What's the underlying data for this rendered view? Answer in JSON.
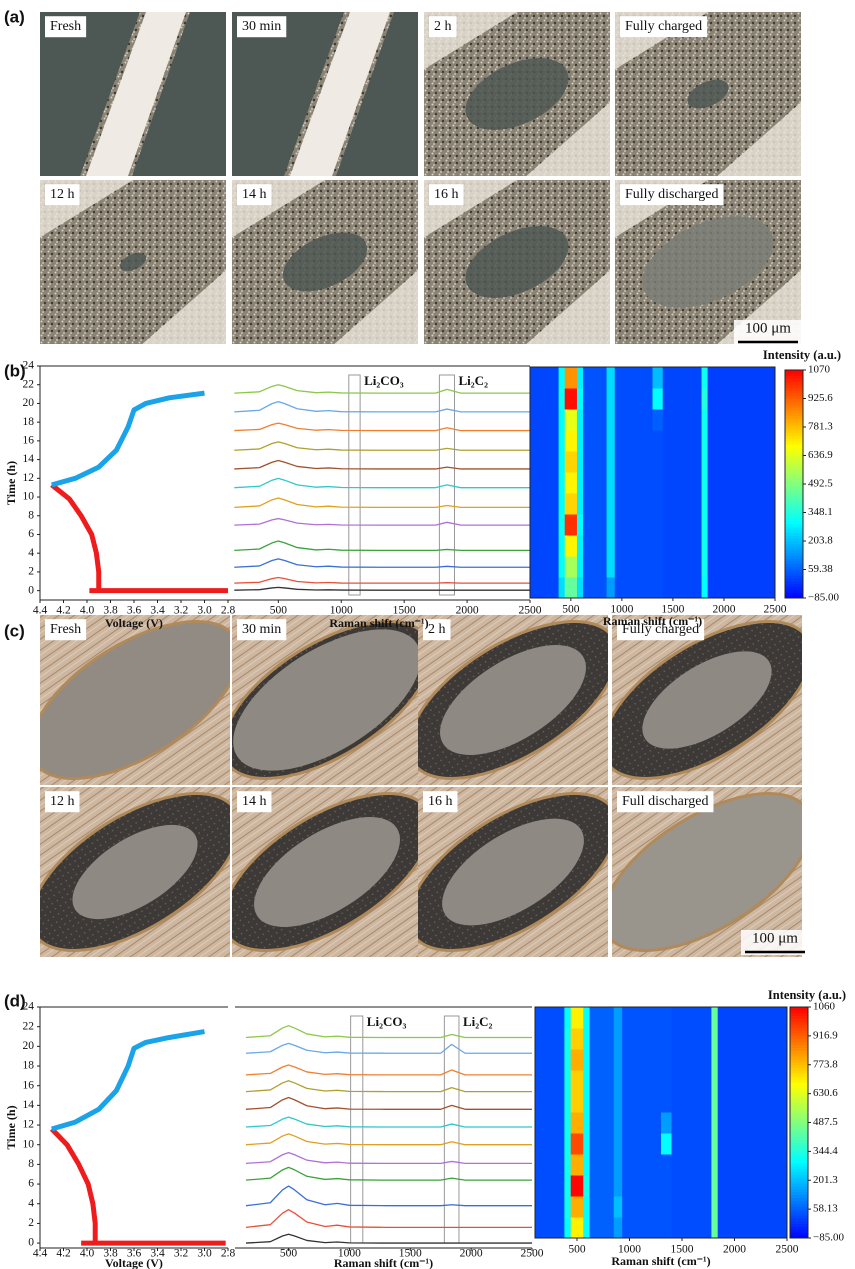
{
  "panel_labels": [
    "(a)",
    "(b)",
    "(c)",
    "(d)"
  ],
  "micrographs": [
    {
      "labels": [
        "Fresh",
        "30 min",
        "2 h",
        "Fully charged",
        "12 h",
        "14 h",
        "16 h",
        "Fully discharged"
      ],
      "scale_bar": "100 μm"
    },
    {
      "labels": [
        "Fresh",
        "30 min",
        "2 h",
        "Fully charged",
        "12 h",
        "14 h",
        "16 h",
        "Full discharged"
      ],
      "scale_bar": "100 μm"
    }
  ],
  "chart_data": [
    {
      "type": "line",
      "xlabel": "Voltage (V)",
      "ylabel": "Time (h)",
      "xlim": [
        4.4,
        2.8
      ],
      "ylim": [
        -1,
        24
      ],
      "xticks": [
        4.4,
        4.2,
        {
          "value": 4,
          "label": "4.0"
        },
        3.8,
        3.6,
        3.4,
        3.2,
        {
          "value": 3,
          "label": "3.0"
        },
        2.8
      ],
      "yticks": [
        0,
        2,
        4,
        6,
        8,
        10,
        12,
        14,
        16,
        18,
        20,
        22,
        24
      ],
      "series": [
        {
          "color": "#ee1c1c",
          "x": [
            3.98,
            2.8,
            null,
            3.9,
            3.9,
            3.92,
            3.96,
            4.05,
            4.15,
            4.3
          ],
          "values": [
            0,
            0,
            null,
            0,
            2,
            4,
            6,
            8,
            9.8,
            11.3
          ]
        },
        {
          "color": "#1aa3e8",
          "x": [
            4.3,
            4.1,
            3.9,
            3.75,
            3.65,
            3.6,
            3.5,
            3.3,
            3.0
          ],
          "values": [
            11.3,
            12,
            13.2,
            15,
            17.5,
            19.3,
            20,
            20.6,
            21.1
          ]
        }
      ]
    },
    {
      "type": "line",
      "xlabel": "Raman shift (cm⁻¹)",
      "xlim": [
        100,
        2500
      ],
      "ylim": [
        -1,
        24
      ],
      "xticks": [
        500,
        1000,
        1500,
        2000,
        2500
      ],
      "annotations": [
        {
          "text": "Li₂CO₃",
          "x": [
            1060,
            1150
          ]
        },
        {
          "text": "Li₂C₂",
          "x": [
            1780,
            1900
          ]
        }
      ],
      "x": [
        150,
        350,
        450,
        500,
        550,
        650,
        800,
        900,
        1000,
        1300,
        1750,
        1840,
        1950,
        2500
      ],
      "series": [
        {
          "color": "#333333",
          "values": [
            0.05,
            0.1,
            0.29,
            0.35,
            0.29,
            0.14,
            0.07,
            0.09,
            0.06,
            0.05,
            0.05,
            0.05,
            0.05,
            0.05
          ]
        },
        {
          "color": "#e8503a",
          "values": [
            0.8,
            0.89,
            1.28,
            1.4,
            1.28,
            0.98,
            0.83,
            0.87,
            0.81,
            0.8,
            0.8,
            0.85,
            0.8,
            0.8
          ]
        },
        {
          "color": "#3a6fd8",
          "values": [
            2.5,
            2.64,
            3.22,
            3.4,
            3.22,
            2.77,
            2.55,
            2.61,
            2.52,
            2.5,
            2.5,
            2.6,
            2.5,
            2.5
          ]
        },
        {
          "color": "#3aa43a",
          "values": [
            4.3,
            4.45,
            5.1,
            5.3,
            5.1,
            4.6,
            4.35,
            4.42,
            4.32,
            4.3,
            4.3,
            4.4,
            4.3,
            4.3
          ]
        },
        {
          "color": "#b070d8",
          "values": [
            7,
            7.11,
            7.56,
            7.7,
            7.56,
            7.21,
            7.04,
            7.08,
            7.01,
            7,
            7,
            7.3,
            7,
            7
          ]
        },
        {
          "color": "#e0a020",
          "values": [
            8.9,
            9.05,
            9.7,
            9.9,
            9.7,
            9.2,
            8.95,
            9.02,
            8.92,
            8.9,
            8.9,
            9.1,
            8.9,
            8.9
          ]
        },
        {
          "color": "#30c8c8",
          "values": [
            11,
            11.15,
            11.8,
            12,
            11.8,
            11.3,
            11.05,
            11.12,
            11.02,
            11,
            11,
            11.3,
            11,
            11
          ]
        },
        {
          "color": "#a0522d",
          "values": [
            13,
            13.14,
            13.72,
            13.9,
            13.72,
            13.27,
            13.05,
            13.11,
            13.02,
            13,
            13,
            13.2,
            13,
            13
          ]
        },
        {
          "color": "#b0a030",
          "values": [
            15,
            15.14,
            15.72,
            15.9,
            15.72,
            15.27,
            15.05,
            15.11,
            15.02,
            15,
            15,
            15.2,
            15,
            15
          ]
        },
        {
          "color": "#f08030",
          "values": [
            17.1,
            17.22,
            17.74,
            17.9,
            17.74,
            17.34,
            17.14,
            17.2,
            17.12,
            17.1,
            17.1,
            17.4,
            17.1,
            17.1
          ]
        },
        {
          "color": "#6aa8e8",
          "values": [
            19.1,
            19.27,
            19.98,
            20.2,
            19.98,
            19.43,
            19.16,
            19.23,
            19.12,
            19.1,
            19.1,
            19.4,
            19.1,
            19.1
          ]
        },
        {
          "color": "#8cc84a",
          "values": [
            21.1,
            21.24,
            21.82,
            22,
            21.82,
            21.37,
            21.15,
            21.21,
            21.12,
            21.1,
            21.1,
            21.5,
            21.1,
            21.1
          ]
        }
      ]
    },
    {
      "type": "heatmap",
      "xlabel": "Raman shift (cm⁻¹)",
      "colorbar_label": "Intensity (a.u.)",
      "xlim": [
        100,
        2500
      ],
      "ylim": [
        0,
        22
      ],
      "xticks": [
        500,
        1000,
        1500,
        2000,
        2500
      ],
      "zlim": [
        -85,
        1070
      ],
      "zticks": [
        1070,
        925.6,
        781.3,
        636.9,
        492.5,
        348.1,
        203.8,
        59.38,
        {
          "value": -85,
          "label": "−85.00"
        }
      ],
      "colorscale": [
        "#0000ff",
        "#0080ff",
        "#00ffff",
        "#80ff80",
        "#ffff00",
        "#ff8000",
        "#ff0000"
      ],
      "x": [
        100,
        380,
        440,
        560,
        620,
        850,
        930,
        1300,
        1400,
        1780,
        1840,
        2500
      ],
      "y": [
        0,
        2,
        4,
        6,
        8,
        10,
        12,
        14,
        16,
        18,
        20,
        22
      ],
      "z": [
        [
          20,
          250,
          450,
          250,
          40,
          150,
          30,
          30,
          20,
          300,
          10
        ],
        [
          20,
          300,
          550,
          280,
          40,
          250,
          30,
          30,
          20,
          320,
          10
        ],
        [
          20,
          300,
          700,
          280,
          40,
          250,
          30,
          30,
          20,
          320,
          10
        ],
        [
          20,
          320,
          1000,
          300,
          40,
          250,
          30,
          30,
          20,
          320,
          10
        ],
        [
          20,
          300,
          750,
          280,
          40,
          250,
          30,
          30,
          20,
          320,
          10
        ],
        [
          20,
          300,
          700,
          280,
          40,
          250,
          30,
          30,
          20,
          320,
          10
        ],
        [
          20,
          300,
          750,
          280,
          40,
          250,
          30,
          30,
          20,
          320,
          10
        ],
        [
          20,
          300,
          700,
          280,
          40,
          250,
          30,
          30,
          20,
          320,
          10
        ],
        [
          20,
          300,
          650,
          280,
          40,
          250,
          30,
          60,
          20,
          320,
          10
        ],
        [
          20,
          320,
          1050,
          300,
          40,
          250,
          30,
          300,
          20,
          350,
          10
        ],
        [
          20,
          300,
          850,
          280,
          40,
          250,
          30,
          200,
          20,
          320,
          10
        ]
      ]
    },
    {
      "type": "line",
      "xlabel": "Voltage (V)",
      "ylabel": "Time (h)",
      "xlim": [
        4.4,
        2.8
      ],
      "ylim": [
        -0.5,
        24
      ],
      "xticks": [
        4.4,
        4.2,
        {
          "value": 4,
          "label": "4.0"
        },
        3.8,
        3.6,
        3.4,
        3.2,
        {
          "value": 3,
          "label": "3.0"
        },
        2.8
      ],
      "yticks": [
        0,
        2,
        4,
        6,
        8,
        10,
        12,
        14,
        16,
        18,
        20,
        22,
        24
      ],
      "series": [
        {
          "color": "#ee1c1c",
          "x": [
            4.05,
            2.82,
            null,
            3.93,
            3.93,
            3.95,
            3.99,
            4.07,
            4.17,
            4.3
          ],
          "values": [
            0,
            0,
            null,
            0,
            2,
            4,
            6,
            8,
            10,
            11.6
          ]
        },
        {
          "color": "#1aa3e8",
          "x": [
            4.3,
            4.1,
            3.9,
            3.75,
            3.65,
            3.6,
            3.5,
            3.3,
            3.0
          ],
          "values": [
            11.6,
            12.3,
            13.6,
            15.5,
            18,
            19.8,
            20.4,
            20.9,
            21.5
          ]
        }
      ]
    },
    {
      "type": "line",
      "xlabel": "Raman shift (cm⁻¹)",
      "xlim": [
        60,
        2500
      ],
      "ylim": [
        -0.5,
        24
      ],
      "xticks": [
        500,
        1000,
        1500,
        2000,
        2500
      ],
      "annotations": [
        {
          "text": "Li₂CO₃",
          "x": [
            1010,
            1110
          ]
        },
        {
          "text": "Li₂C₂",
          "x": [
            1780,
            1900
          ]
        }
      ],
      "x": [
        150,
        350,
        450,
        500,
        550,
        650,
        800,
        900,
        1000,
        1300,
        1750,
        1840,
        1950,
        2500
      ],
      "series": [
        {
          "color": "#333333",
          "values": [
            0,
            0.14,
            0.72,
            0.9,
            0.72,
            0.27,
            0.05,
            0.11,
            0.02,
            0,
            0,
            0,
            0,
            0
          ]
        },
        {
          "color": "#e8503a",
          "values": [
            1.6,
            1.87,
            3.04,
            3.4,
            3.04,
            2.14,
            1.69,
            1.82,
            1.64,
            1.6,
            1.6,
            1.6,
            1.6,
            1.6
          ]
        },
        {
          "color": "#3a6fd8",
          "values": [
            3.8,
            4.1,
            5.4,
            5.8,
            5.4,
            4.4,
            3.9,
            4.04,
            3.84,
            3.8,
            3.8,
            3.9,
            3.8,
            3.8
          ]
        },
        {
          "color": "#3aa43a",
          "values": [
            6.4,
            6.6,
            7.44,
            7.7,
            7.44,
            6.79,
            6.47,
            6.56,
            6.43,
            6.4,
            6.4,
            6.6,
            6.4,
            6.4
          ]
        },
        {
          "color": "#b070d8",
          "values": [
            8.1,
            8.27,
            8.98,
            9.2,
            8.98,
            8.43,
            8.16,
            8.23,
            8.12,
            8.1,
            8.1,
            8.3,
            8.1,
            8.1
          ]
        },
        {
          "color": "#e0a020",
          "values": [
            10,
            10.17,
            10.88,
            11.1,
            10.88,
            10.33,
            10.06,
            10.13,
            10.02,
            10,
            10,
            10.3,
            10,
            10
          ]
        },
        {
          "color": "#30c8c8",
          "values": [
            11.8,
            11.95,
            12.6,
            12.8,
            12.6,
            12.1,
            11.85,
            11.92,
            11.82,
            11.8,
            11.8,
            12.1,
            11.8,
            11.8
          ]
        },
        {
          "color": "#a0522d",
          "values": [
            13.6,
            13.78,
            14.56,
            14.8,
            14.56,
            13.96,
            13.66,
            13.74,
            13.62,
            13.6,
            13.6,
            14,
            13.6,
            13.6
          ]
        },
        {
          "color": "#b0a030",
          "values": [
            15.4,
            15.57,
            16.28,
            16.5,
            16.28,
            15.73,
            15.46,
            15.53,
            15.42,
            15.4,
            15.4,
            15.8,
            15.4,
            15.4
          ]
        },
        {
          "color": "#f08030",
          "values": [
            17.1,
            17.25,
            17.9,
            18.1,
            17.9,
            17.4,
            17.15,
            17.22,
            17.12,
            17.1,
            17.1,
            17.6,
            17.1,
            17.1
          ]
        },
        {
          "color": "#6aa8e8",
          "values": [
            19.3,
            19.45,
            20.1,
            20.3,
            20.1,
            19.6,
            19.35,
            19.42,
            19.32,
            19.3,
            19.3,
            20.2,
            19.3,
            19.3
          ]
        },
        {
          "color": "#8cc84a",
          "values": [
            20.9,
            21.08,
            21.86,
            22.1,
            21.86,
            21.26,
            20.96,
            21.04,
            20.92,
            20.9,
            20.9,
            21.2,
            20.9,
            20.9
          ]
        }
      ]
    },
    {
      "type": "heatmap",
      "xlabel": "Raman shift (cm⁻¹)",
      "colorbar_label": "Intensity (a.u.)",
      "xlim": [
        100,
        2500
      ],
      "ylim": [
        0,
        22
      ],
      "xticks": [
        500,
        1000,
        1500,
        2000,
        2500
      ],
      "zlim": [
        -85,
        1060
      ],
      "zticks": [
        1060,
        916.9,
        773.8,
        630.6,
        487.5,
        344.4,
        201.3,
        58.13,
        {
          "value": -85,
          "label": "−85.00"
        }
      ],
      "colorscale": [
        "#0000ff",
        "#0080ff",
        "#00ffff",
        "#80ff80",
        "#ffff00",
        "#ff8000",
        "#ff0000"
      ],
      "x": [
        100,
        380,
        440,
        560,
        620,
        850,
        930,
        1300,
        1400,
        1780,
        1840,
        2500
      ],
      "y": [
        0,
        2,
        4,
        6,
        8,
        10,
        12,
        14,
        16,
        18,
        20,
        22
      ],
      "z": [
        [
          30,
          300,
          700,
          300,
          60,
          150,
          40,
          40,
          30,
          450,
          20
        ],
        [
          30,
          320,
          800,
          300,
          60,
          200,
          40,
          40,
          30,
          450,
          20
        ],
        [
          30,
          320,
          1050,
          320,
          60,
          150,
          40,
          40,
          30,
          450,
          20
        ],
        [
          30,
          320,
          800,
          300,
          60,
          150,
          40,
          40,
          30,
          450,
          20
        ],
        [
          30,
          320,
          950,
          300,
          60,
          150,
          40,
          300,
          30,
          450,
          20
        ],
        [
          30,
          320,
          800,
          300,
          60,
          150,
          40,
          150,
          30,
          450,
          20
        ],
        [
          30,
          320,
          750,
          300,
          60,
          150,
          40,
          40,
          30,
          450,
          20
        ],
        [
          30,
          320,
          750,
          300,
          60,
          150,
          40,
          40,
          30,
          450,
          20
        ],
        [
          30,
          320,
          800,
          300,
          60,
          150,
          40,
          40,
          30,
          450,
          20
        ],
        [
          30,
          320,
          750,
          300,
          60,
          150,
          40,
          40,
          30,
          450,
          20
        ],
        [
          30,
          300,
          700,
          300,
          60,
          150,
          40,
          40,
          30,
          450,
          20
        ]
      ]
    }
  ]
}
